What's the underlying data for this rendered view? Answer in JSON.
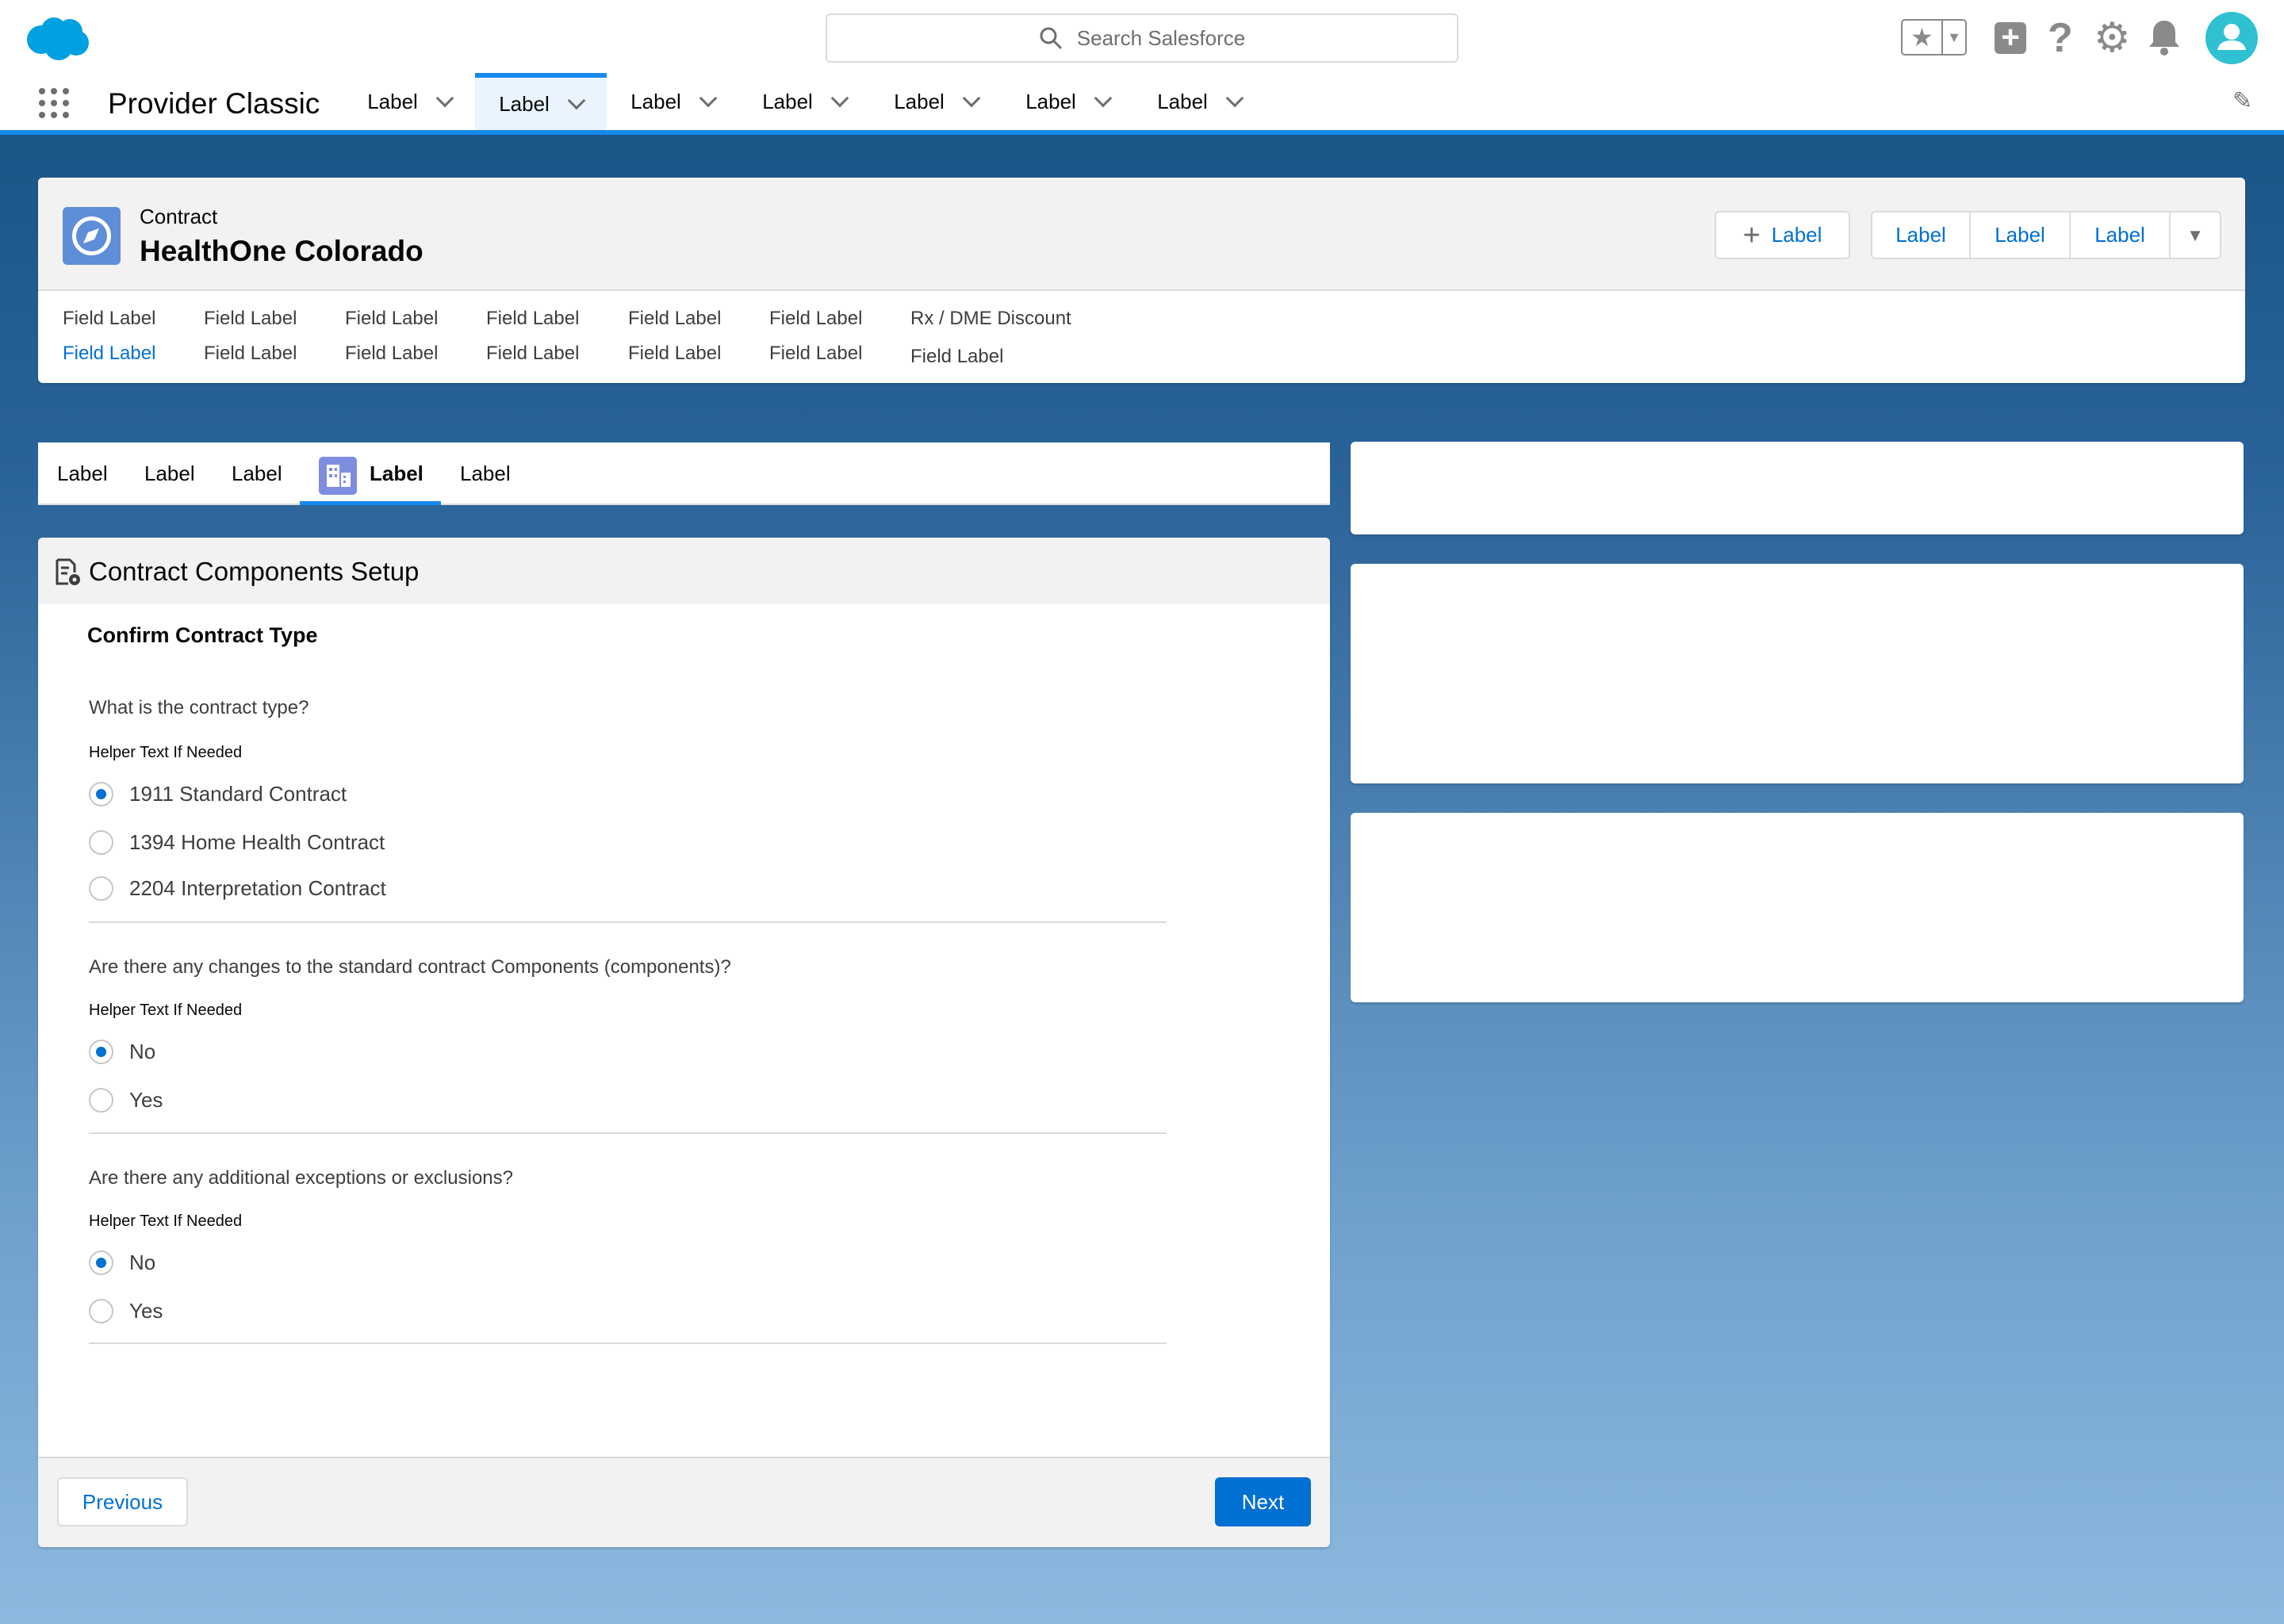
{
  "header": {
    "search_placeholder": "Search Salesforce",
    "icons": [
      "salesforce-cloud-logo",
      "search-icon",
      "favorites-star-icon",
      "add-icon",
      "help-icon",
      "setup-gear-icon",
      "bell-icon",
      "avatar"
    ]
  },
  "nav": {
    "app_name": "Provider Classic",
    "tabs": [
      "Label",
      "Label",
      "Label",
      "Label",
      "Label",
      "Label",
      "Label"
    ],
    "active_index": 1
  },
  "record": {
    "object": "Contract",
    "title": "HealthOne Colorado",
    "new_button": "Label",
    "group_buttons": [
      "Label",
      "Label",
      "Label"
    ],
    "fields_row1": [
      "Field Label",
      "Field Label",
      "Field Label",
      "Field Label",
      "Field Label",
      "Field Label",
      "Rx / DME Discount"
    ],
    "fields_row2": [
      "Field Label",
      "Field Label",
      "Field Label",
      "Field Label",
      "Field Label",
      "Field Label",
      "Field Label"
    ]
  },
  "subtabs": {
    "items": [
      "Label",
      "Label",
      "Label",
      "Label",
      "Label"
    ],
    "active_index": 3
  },
  "setup": {
    "title": "Contract Components Setup",
    "section_title": "Confirm Contract Type",
    "questions": [
      {
        "question": "What is the contract type?",
        "helper": "Helper Text If Needed",
        "options": [
          "1911 Standard Contract",
          "1394 Home Health Contract",
          "2204 Interpretation Contract"
        ],
        "selected": 0
      },
      {
        "question": "Are there any changes to the standard contract Components (components)?",
        "helper": "Helper Text If Needed",
        "options": [
          "No",
          "Yes"
        ],
        "selected": 0
      },
      {
        "question": "Are there any additional exceptions or exclusions?",
        "helper": "Helper Text If Needed",
        "options": [
          "No",
          "Yes"
        ],
        "selected": 0
      }
    ],
    "previous": "Previous",
    "next": "Next"
  },
  "colors": {
    "brand": "#0070d2",
    "accent": "#1589ee",
    "header_bg": "#1b5588",
    "avatar": "#2fc1d2",
    "record_icon": "#5f8ed9"
  }
}
